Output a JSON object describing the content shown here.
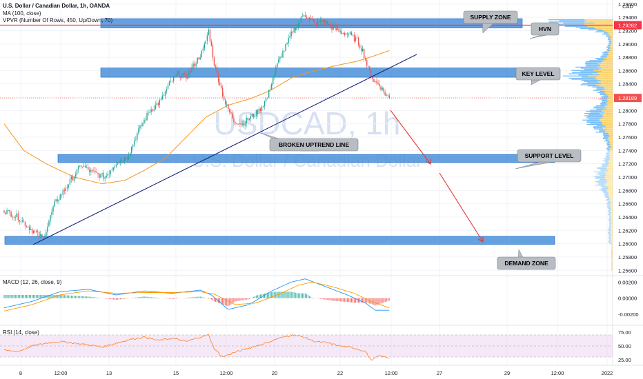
{
  "header": {
    "title": "U.S. Dollar / Canadian Dollar, 1h, OANDA",
    "ma_label": "MA (100, close)",
    "vpvr_label": "VPVR (Number Of Rows, 450, Up/Down, 70)",
    "macd_label": "MACD (12, 26, close, 9)",
    "rsi_label": "RSI (14, close)",
    "currency": "CAD"
  },
  "watermark": {
    "symbol": "USDCAD, 1h",
    "name": "U.S. Dollar / Canadian Dollar"
  },
  "colors": {
    "up": "#26a69a",
    "down": "#ef5350",
    "zone": "#4a90d9",
    "ma": "#f7941d",
    "trend": "#1a237e",
    "arrow": "#e53935",
    "macd": "#2196f3",
    "signal": "#ff9800",
    "rsi": "#ff7f1e"
  },
  "chart_data": {
    "type": "candlestick",
    "symbol": "USDCAD",
    "interval": "1h",
    "broker": "OANDA",
    "price_axis": {
      "ticks": [
        "1.29600",
        "1.29400",
        "1.29200",
        "1.29000",
        "1.28800",
        "1.28600",
        "1.28400",
        "1.28200",
        "1.28000",
        "1.27800",
        "1.27600",
        "1.27400",
        "1.27200",
        "1.27000",
        "1.26800",
        "1.26600",
        "1.26400",
        "1.26200",
        "1.26000",
        "1.25800",
        "1.25600"
      ],
      "ylim": [
        1.2552,
        1.2966
      ],
      "current_price": "1.28189",
      "red_line_price": "1.29282"
    },
    "time_axis": {
      "ticks": [
        "8",
        "12:00",
        "13",
        "15",
        "12:00",
        "20",
        "22",
        "12:00",
        "27",
        "29",
        "12:00",
        "2022"
      ]
    },
    "zones": [
      {
        "label": "SUPPLY ZONE",
        "from": 1.2924,
        "to": 1.2938
      },
      {
        "label": "KEY LEVEL",
        "from": 1.285,
        "to": 1.2864
      },
      {
        "label": "SUPPORT LEVEL",
        "from": 1.2722,
        "to": 1.2734
      },
      {
        "label": "DEMAND ZONE",
        "from": 1.2599,
        "to": 1.2611
      }
    ],
    "annotations": [
      "HVN",
      "BROKEN UPTREND LINE"
    ],
    "price_waypoints": [
      [
        0,
        1.265
      ],
      [
        10,
        1.264
      ],
      [
        20,
        1.262
      ],
      [
        28,
        1.2608
      ],
      [
        36,
        1.266
      ],
      [
        46,
        1.269
      ],
      [
        55,
        1.2718
      ],
      [
        62,
        1.2708
      ],
      [
        72,
        1.27
      ],
      [
        80,
        1.2722
      ],
      [
        88,
        1.273
      ],
      [
        96,
        1.277
      ],
      [
        104,
        1.28
      ],
      [
        112,
        1.2815
      ],
      [
        118,
        1.284
      ],
      [
        124,
        1.2855
      ],
      [
        130,
        1.285
      ],
      [
        136,
        1.287
      ],
      [
        142,
        1.289
      ],
      [
        146,
        1.292
      ],
      [
        150,
        1.287
      ],
      [
        154,
        1.284
      ],
      [
        158,
        1.281
      ],
      [
        164,
        1.2785
      ],
      [
        170,
        1.278
      ],
      [
        176,
        1.279
      ],
      [
        182,
        1.28
      ],
      [
        188,
        1.282
      ],
      [
        192,
        1.285
      ],
      [
        196,
        1.2875
      ],
      [
        202,
        1.29
      ],
      [
        206,
        1.292
      ],
      [
        210,
        1.293
      ],
      [
        214,
        1.2945
      ],
      [
        218,
        1.2938
      ],
      [
        222,
        1.293
      ],
      [
        228,
        1.2935
      ],
      [
        234,
        1.2925
      ],
      [
        240,
        1.2918
      ],
      [
        246,
        1.2915
      ],
      [
        252,
        1.2905
      ],
      [
        256,
        1.289
      ],
      [
        260,
        1.2862
      ],
      [
        264,
        1.2845
      ],
      [
        268,
        1.2838
      ],
      [
        272,
        1.2825
      ],
      [
        275,
        1.2819
      ]
    ],
    "ma_waypoints": [
      [
        0,
        1.278
      ],
      [
        14,
        1.274
      ],
      [
        30,
        1.272
      ],
      [
        50,
        1.27
      ],
      [
        70,
        1.269
      ],
      [
        86,
        1.2695
      ],
      [
        100,
        1.271
      ],
      [
        116,
        1.273
      ],
      [
        130,
        1.276
      ],
      [
        144,
        1.279
      ],
      [
        160,
        1.2808
      ],
      [
        176,
        1.2818
      ],
      [
        190,
        1.283
      ],
      [
        206,
        1.285
      ],
      [
        222,
        1.286
      ],
      [
        238,
        1.2868
      ],
      [
        252,
        1.2874
      ],
      [
        264,
        1.2882
      ],
      [
        275,
        1.289
      ]
    ],
    "macd": {
      "axis_ticks": [
        "0.00200",
        "0.00000",
        "-0.00200"
      ],
      "ylim": [
        -0.0032,
        0.0028
      ],
      "macd_waypoints": [
        [
          0,
          -0.0012
        ],
        [
          20,
          -0.0004
        ],
        [
          40,
          0.0008
        ],
        [
          60,
          0.0011
        ],
        [
          80,
          0.0004
        ],
        [
          100,
          0.0009
        ],
        [
          120,
          0.0006
        ],
        [
          140,
          0.001
        ],
        [
          148,
          0.0004
        ],
        [
          160,
          -0.0014
        ],
        [
          175,
          -0.0008
        ],
        [
          190,
          0.0008
        ],
        [
          205,
          0.002
        ],
        [
          215,
          0.0024
        ],
        [
          230,
          0.0014
        ],
        [
          245,
          0.0004
        ],
        [
          258,
          -0.0006
        ],
        [
          265,
          -0.0015
        ],
        [
          275,
          -0.0015
        ]
      ],
      "signal_waypoints": [
        [
          0,
          -0.0016
        ],
        [
          20,
          -0.0008
        ],
        [
          40,
          0.0004
        ],
        [
          60,
          0.0009
        ],
        [
          80,
          0.0006
        ],
        [
          100,
          0.0007
        ],
        [
          120,
          0.0007
        ],
        [
          140,
          0.0008
        ],
        [
          150,
          0.0005
        ],
        [
          165,
          -0.0008
        ],
        [
          180,
          -0.0006
        ],
        [
          195,
          0.0004
        ],
        [
          210,
          0.0016
        ],
        [
          220,
          0.002
        ],
        [
          235,
          0.0014
        ],
        [
          250,
          0.0006
        ],
        [
          262,
          -0.0004
        ],
        [
          275,
          -0.0012
        ]
      ]
    },
    "rsi": {
      "axis_ticks": [
        "75.00",
        "50.00",
        "25.00"
      ],
      "ylim": [
        15,
        85
      ],
      "band": [
        30,
        70
      ],
      "waypoints": [
        [
          0,
          42
        ],
        [
          10,
          40
        ],
        [
          20,
          50
        ],
        [
          30,
          55
        ],
        [
          40,
          58
        ],
        [
          50,
          55
        ],
        [
          60,
          52
        ],
        [
          70,
          48
        ],
        [
          80,
          55
        ],
        [
          90,
          62
        ],
        [
          100,
          66
        ],
        [
          110,
          60
        ],
        [
          120,
          64
        ],
        [
          130,
          58
        ],
        [
          140,
          66
        ],
        [
          146,
          70
        ],
        [
          150,
          45
        ],
        [
          156,
          30
        ],
        [
          164,
          38
        ],
        [
          172,
          44
        ],
        [
          180,
          50
        ],
        [
          188,
          56
        ],
        [
          196,
          64
        ],
        [
          206,
          70
        ],
        [
          214,
          66
        ],
        [
          222,
          58
        ],
        [
          230,
          56
        ],
        [
          240,
          50
        ],
        [
          250,
          46
        ],
        [
          258,
          40
        ],
        [
          262,
          24
        ],
        [
          268,
          32
        ],
        [
          275,
          28
        ]
      ]
    }
  }
}
